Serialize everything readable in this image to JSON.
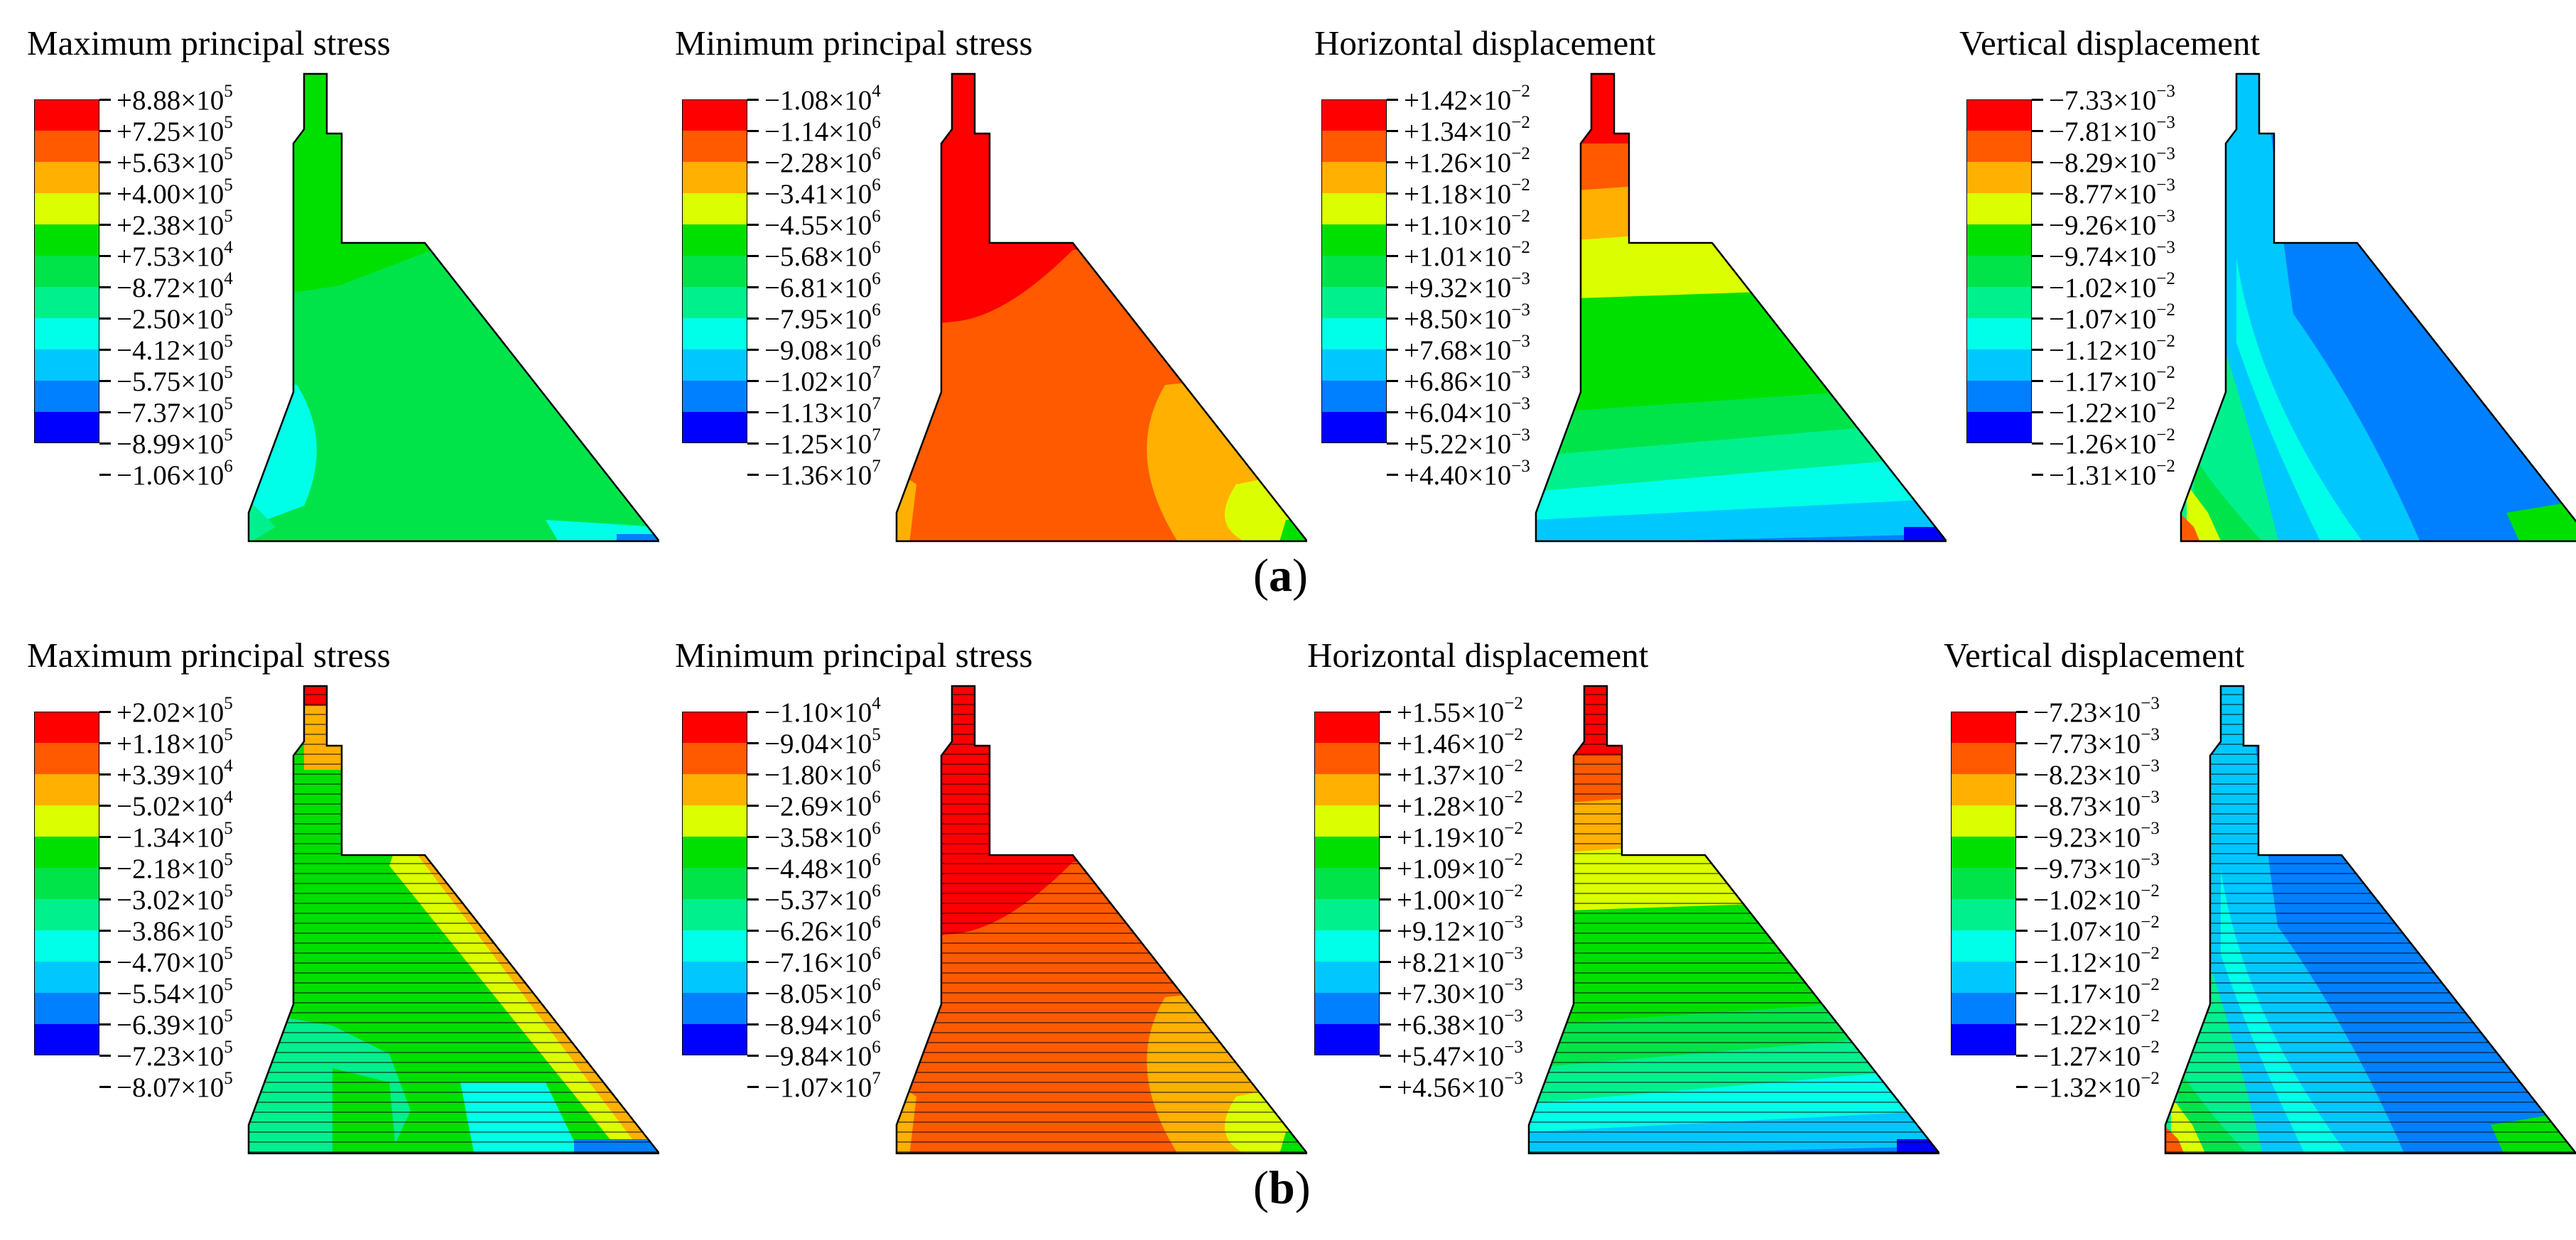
{
  "legend_colors": [
    "#ff0000",
    "#ff5a00",
    "#ffb000",
    "#dcff00",
    "#00e000",
    "#00e44a",
    "#00f08e",
    "#00ffe8",
    "#00c8ff",
    "#0080ff",
    "#0000ff"
  ],
  "caption_a": "a",
  "caption_b": "b",
  "panels": [
    {
      "title": "Maximum principal stress",
      "ticks": [
        [
          "+8.88×10",
          "5"
        ],
        [
          "+7.25×10",
          "5"
        ],
        [
          "+5.63×10",
          "5"
        ],
        [
          "+4.00×10",
          "5"
        ],
        [
          "+2.38×10",
          "5"
        ],
        [
          "+7.53×10",
          "4"
        ],
        [
          "−8.72×10",
          "4"
        ],
        [
          "−2.50×10",
          "5"
        ],
        [
          "−4.12×10",
          "5"
        ],
        [
          "−5.75×10",
          "5"
        ],
        [
          "−7.37×10",
          "5"
        ],
        [
          "−8.99×10",
          "5"
        ],
        [
          "−1.06×10",
          "6"
        ]
      ]
    },
    {
      "title": "Minimum principal stress",
      "ticks": [
        [
          "−1.08×10",
          "4"
        ],
        [
          "−1.14×10",
          "6"
        ],
        [
          "−2.28×10",
          "6"
        ],
        [
          "−3.41×10",
          "6"
        ],
        [
          "−4.55×10",
          "6"
        ],
        [
          "−5.68×10",
          "6"
        ],
        [
          "−6.81×10",
          "6"
        ],
        [
          "−7.95×10",
          "6"
        ],
        [
          "−9.08×10",
          "6"
        ],
        [
          "−1.02×10",
          "7"
        ],
        [
          "−1.13×10",
          "7"
        ],
        [
          "−1.25×10",
          "7"
        ],
        [
          "−1.36×10",
          "7"
        ]
      ]
    },
    {
      "title": "Horizontal displacement",
      "ticks": [
        [
          "+1.42×10",
          "−2"
        ],
        [
          "+1.34×10",
          "−2"
        ],
        [
          "+1.26×10",
          "−2"
        ],
        [
          "+1.18×10",
          "−2"
        ],
        [
          "+1.10×10",
          "−2"
        ],
        [
          "+1.01×10",
          "−2"
        ],
        [
          "+9.32×10",
          "−3"
        ],
        [
          "+8.50×10",
          "−3"
        ],
        [
          "+7.68×10",
          "−3"
        ],
        [
          "+6.86×10",
          "−3"
        ],
        [
          "+6.04×10",
          "−3"
        ],
        [
          "+5.22×10",
          "−3"
        ],
        [
          "+4.40×10",
          "−3"
        ]
      ]
    },
    {
      "title": "Vertical displacement",
      "ticks": [
        [
          "−7.33×10",
          "−3"
        ],
        [
          "−7.81×10",
          "−3"
        ],
        [
          "−8.29×10",
          "−3"
        ],
        [
          "−8.77×10",
          "−3"
        ],
        [
          "−9.26×10",
          "−3"
        ],
        [
          "−9.74×10",
          "−3"
        ],
        [
          "−1.02×10",
          "−2"
        ],
        [
          "−1.07×10",
          "−2"
        ],
        [
          "−1.12×10",
          "−2"
        ],
        [
          "−1.17×10",
          "−2"
        ],
        [
          "−1.22×10",
          "−2"
        ],
        [
          "−1.26×10",
          "−2"
        ],
        [
          "−1.31×10",
          "−2"
        ]
      ]
    },
    {
      "title": "Maximum principal stress",
      "ticks": [
        [
          "+2.02×10",
          "5"
        ],
        [
          "+1.18×10",
          "5"
        ],
        [
          "+3.39×10",
          "4"
        ],
        [
          "−5.02×10",
          "4"
        ],
        [
          "−1.34×10",
          "5"
        ],
        [
          "−2.18×10",
          "5"
        ],
        [
          "−3.02×10",
          "5"
        ],
        [
          "−3.86×10",
          "5"
        ],
        [
          "−4.70×10",
          "5"
        ],
        [
          "−5.54×10",
          "5"
        ],
        [
          "−6.39×10",
          "5"
        ],
        [
          "−7.23×10",
          "5"
        ],
        [
          "−8.07×10",
          "5"
        ]
      ]
    },
    {
      "title": "Minimum principal stress",
      "ticks": [
        [
          "−1.10×10",
          "4"
        ],
        [
          "−9.04×10",
          "5"
        ],
        [
          "−1.80×10",
          "6"
        ],
        [
          "−2.69×10",
          "6"
        ],
        [
          "−3.58×10",
          "6"
        ],
        [
          "−4.48×10",
          "6"
        ],
        [
          "−5.37×10",
          "6"
        ],
        [
          "−6.26×10",
          "6"
        ],
        [
          "−7.16×10",
          "6"
        ],
        [
          "−8.05×10",
          "6"
        ],
        [
          "−8.94×10",
          "6"
        ],
        [
          "−9.84×10",
          "6"
        ],
        [
          "−1.07×10",
          "7"
        ]
      ]
    },
    {
      "title": "Horizontal displacement",
      "ticks": [
        [
          "+1.55×10",
          "−2"
        ],
        [
          "+1.46×10",
          "−2"
        ],
        [
          "+1.37×10",
          "−2"
        ],
        [
          "+1.28×10",
          "−2"
        ],
        [
          "+1.19×10",
          "−2"
        ],
        [
          "+1.09×10",
          "−2"
        ],
        [
          "+1.00×10",
          "−2"
        ],
        [
          "+9.12×10",
          "−3"
        ],
        [
          "+8.21×10",
          "−3"
        ],
        [
          "+7.30×10",
          "−3"
        ],
        [
          "+6.38×10",
          "−3"
        ],
        [
          "+5.47×10",
          "−3"
        ],
        [
          "+4.56×10",
          "−3"
        ]
      ]
    },
    {
      "title": "Vertical displacement",
      "ticks": [
        [
          "−7.23×10",
          "−3"
        ],
        [
          "−7.73×10",
          "−3"
        ],
        [
          "−8.23×10",
          "−3"
        ],
        [
          "−8.73×10",
          "−3"
        ],
        [
          "−9.23×10",
          "−3"
        ],
        [
          "−9.73×10",
          "−3"
        ],
        [
          "−1.02×10",
          "−2"
        ],
        [
          "−1.07×10",
          "−2"
        ],
        [
          "−1.12×10",
          "−2"
        ],
        [
          "−1.17×10",
          "−2"
        ],
        [
          "−1.22×10",
          "−2"
        ],
        [
          "−1.27×10",
          "−2"
        ],
        [
          "−1.32×10",
          "−2"
        ]
      ]
    }
  ]
}
